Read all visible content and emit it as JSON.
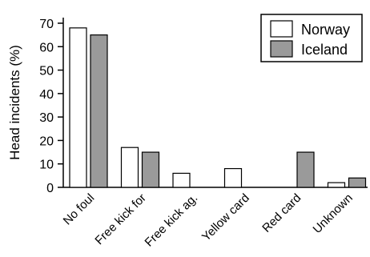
{
  "chart_data": {
    "type": "bar",
    "ylabel": "Head incidents (%)",
    "ylim": [
      0,
      70
    ],
    "yticks": [
      0,
      10,
      20,
      30,
      40,
      50,
      60,
      70
    ],
    "categories": [
      "No foul",
      "Free kick for",
      "Free kick ag.",
      "Yellow card",
      "Red card",
      "Unknown"
    ],
    "series": [
      {
        "name": "Norway",
        "values": [
          68,
          17,
          6,
          8,
          0,
          2
        ],
        "color": "#ffffff"
      },
      {
        "name": "Iceland",
        "values": [
          65,
          15,
          0,
          0,
          15,
          4
        ],
        "color": "#9a9a9a"
      }
    ],
    "legend_position": "top-right",
    "grid": false
  }
}
